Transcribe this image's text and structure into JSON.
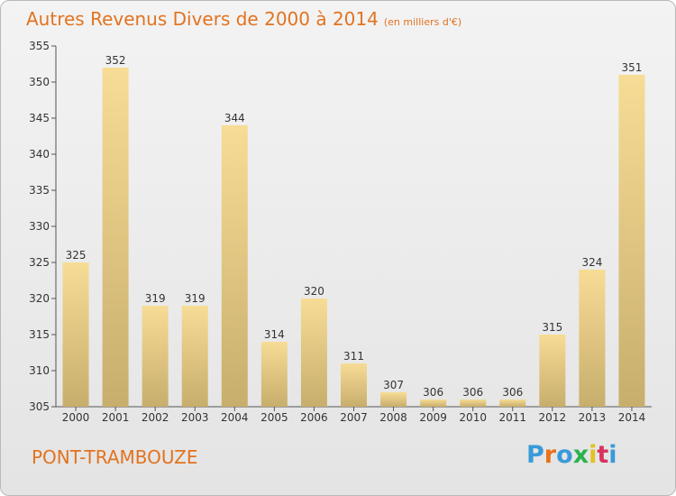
{
  "header": {
    "title": "Autres Revenus Divers de 2000 à 2014",
    "unit": "(en milliers d'€)"
  },
  "footer": {
    "commune": "PONT-TRAMBOUZE",
    "logo_letters": [
      "P",
      "r",
      "o",
      "x",
      "i",
      "t",
      "i"
    ],
    "logo_colors": [
      "#3a9ad9",
      "#e8731b",
      "#3a9ad9",
      "#2bb24c",
      "#e2c21f",
      "#d7335e",
      "#3a9ad9"
    ]
  },
  "colors": {
    "title": "#e2731f",
    "bar_top": "#f6dc95",
    "bar_bottom": "#c8ae6c"
  },
  "chart_data": {
    "type": "bar",
    "title": "Autres Revenus Divers de 2000 à 2014",
    "subtitle": "(en milliers d'€)",
    "categories": [
      "2000",
      "2001",
      "2002",
      "2003",
      "2004",
      "2005",
      "2006",
      "2007",
      "2008",
      "2009",
      "2010",
      "2011",
      "2012",
      "2013",
      "2014"
    ],
    "values": [
      325,
      352,
      319,
      319,
      344,
      314,
      320,
      311,
      307,
      306,
      306,
      306,
      315,
      324,
      351
    ],
    "ylim": [
      305,
      355
    ],
    "yticks": [
      305,
      310,
      315,
      320,
      325,
      330,
      335,
      340,
      345,
      350,
      355
    ],
    "grid": false
  }
}
